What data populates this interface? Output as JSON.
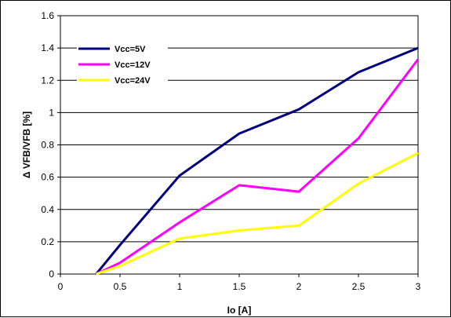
{
  "chart_data": {
    "type": "line",
    "title": "",
    "xlabel": "Io [A]",
    "ylabel": "Δ VFB/VFB [%]",
    "xlim": [
      0,
      3
    ],
    "ylim": [
      0,
      1.6
    ],
    "xticks": [
      "0",
      "0.5",
      "1",
      "1.5",
      "2",
      "2.5",
      "3"
    ],
    "yticks": [
      "0",
      "0.2",
      "0.4",
      "0.6",
      "0.8",
      "1",
      "1.2",
      "1.4",
      "1.6"
    ],
    "grid": "horizontal",
    "legend_position": "top-left",
    "series": [
      {
        "name": "Vcc=5V",
        "color": "#000080",
        "x": [
          0.3,
          0.5,
          1,
          1.5,
          2,
          2.5,
          3
        ],
        "y": [
          0,
          0.18,
          0.61,
          0.87,
          1.02,
          1.25,
          1.4
        ]
      },
      {
        "name": "Vcc=12V",
        "color": "#ff00ff",
        "x": [
          0.3,
          0.5,
          1,
          1.5,
          2,
          2.5,
          3
        ],
        "y": [
          0,
          0.07,
          0.32,
          0.55,
          0.51,
          0.84,
          1.33
        ]
      },
      {
        "name": "Vcc=24V",
        "color": "#ffff00",
        "x": [
          0.3,
          0.5,
          1,
          1.5,
          2,
          2.5,
          3
        ],
        "y": [
          0,
          0.05,
          0.22,
          0.27,
          0.3,
          0.56,
          0.75
        ]
      }
    ]
  }
}
